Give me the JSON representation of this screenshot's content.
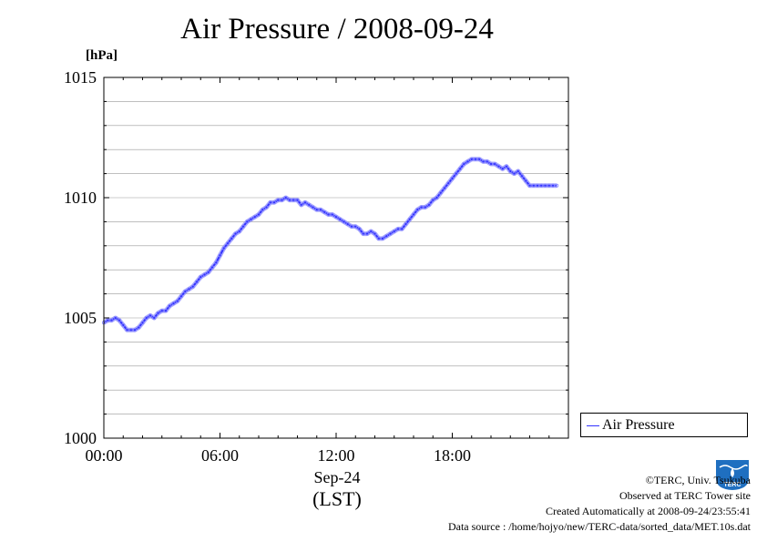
{
  "title": "Air Pressure / 2008-09-24",
  "unit_label": "[hPa]",
  "x_date_label": "Sep-24",
  "x_tz_label": "(LST)",
  "legend_label": "Air Pressure",
  "logo_text": "TERC",
  "credits": {
    "copyright": "©TERC, Univ. Tsukuba",
    "observed": "Observed at TERC Tower site",
    "created": "Created Automatically at 2008-09-24/23:55:41",
    "source": "Data source : /home/hojyo/new/TERC-data/sorted_data/MET.10s.dat"
  },
  "colors": {
    "series": "#3333ff",
    "marker": "#8888ff",
    "grid": "#999999",
    "logo": "#1f6fc0"
  },
  "chart_data": {
    "type": "line",
    "xlabel": "",
    "ylabel": "[hPa]",
    "xlim": [
      0,
      24
    ],
    "ylim": [
      1000,
      1015
    ],
    "x_ticks": [
      0,
      6,
      12,
      18
    ],
    "x_tick_labels": [
      "00:00",
      "06:00",
      "12:00",
      "18:00"
    ],
    "y_ticks": [
      1000,
      1005,
      1010,
      1015
    ],
    "y_tick_labels": [
      "1000",
      "1005",
      "1010",
      "1015"
    ],
    "y_minor_step": 1,
    "grid": true,
    "legend_position": "outside-right-bottom",
    "series": [
      {
        "name": "Air Pressure",
        "x": [
          0,
          0.2,
          0.4,
          0.6,
          0.8,
          1.0,
          1.2,
          1.4,
          1.6,
          1.8,
          2.0,
          2.2,
          2.4,
          2.6,
          2.8,
          3.0,
          3.2,
          3.4,
          3.6,
          3.8,
          4.0,
          4.2,
          4.4,
          4.6,
          4.8,
          5.0,
          5.2,
          5.4,
          5.6,
          5.8,
          6.0,
          6.2,
          6.4,
          6.6,
          6.8,
          7.0,
          7.2,
          7.4,
          7.6,
          7.8,
          8.0,
          8.2,
          8.4,
          8.6,
          8.8,
          9.0,
          9.2,
          9.4,
          9.6,
          9.8,
          10.0,
          10.2,
          10.4,
          10.6,
          10.8,
          11.0,
          11.2,
          11.4,
          11.6,
          11.8,
          12.0,
          12.2,
          12.4,
          12.6,
          12.8,
          13.0,
          13.2,
          13.4,
          13.6,
          13.8,
          14.0,
          14.2,
          14.4,
          14.6,
          14.8,
          15.0,
          15.2,
          15.4,
          15.6,
          15.8,
          16.0,
          16.2,
          16.4,
          16.6,
          16.8,
          17.0,
          17.2,
          17.4,
          17.6,
          17.8,
          18.0,
          18.2,
          18.4,
          18.6,
          18.8,
          19.0,
          19.2,
          19.4,
          19.6,
          19.8,
          20.0,
          20.2,
          20.4,
          20.6,
          20.8,
          21.0,
          21.2,
          21.4,
          21.6,
          21.8,
          22.0,
          22.2,
          22.4,
          22.6,
          22.8,
          23.0,
          23.2,
          23.4
        ],
        "values": [
          1004.8,
          1004.9,
          1004.9,
          1005.0,
          1004.9,
          1004.7,
          1004.5,
          1004.5,
          1004.5,
          1004.6,
          1004.8,
          1005.0,
          1005.1,
          1005.0,
          1005.2,
          1005.3,
          1005.3,
          1005.5,
          1005.6,
          1005.7,
          1005.9,
          1006.1,
          1006.2,
          1006.3,
          1006.5,
          1006.7,
          1006.8,
          1006.9,
          1007.1,
          1007.3,
          1007.6,
          1007.9,
          1008.1,
          1008.3,
          1008.5,
          1008.6,
          1008.8,
          1009.0,
          1009.1,
          1009.2,
          1009.3,
          1009.5,
          1009.6,
          1009.8,
          1009.8,
          1009.9,
          1009.9,
          1010.0,
          1009.9,
          1009.9,
          1009.9,
          1009.7,
          1009.8,
          1009.7,
          1009.6,
          1009.5,
          1009.5,
          1009.4,
          1009.3,
          1009.3,
          1009.2,
          1009.1,
          1009.0,
          1008.9,
          1008.8,
          1008.8,
          1008.7,
          1008.5,
          1008.5,
          1008.6,
          1008.5,
          1008.3,
          1008.3,
          1008.4,
          1008.5,
          1008.6,
          1008.7,
          1008.7,
          1008.9,
          1009.1,
          1009.3,
          1009.5,
          1009.6,
          1009.6,
          1009.7,
          1009.9,
          1010.0,
          1010.2,
          1010.4,
          1010.6,
          1010.8,
          1011.0,
          1011.2,
          1011.4,
          1011.5,
          1011.6,
          1011.6,
          1011.6,
          1011.5,
          1011.5,
          1011.4,
          1011.4,
          1011.3,
          1011.2,
          1011.3,
          1011.1,
          1011.0,
          1011.1,
          1010.9,
          1010.7,
          1010.5,
          1010.5,
          1010.5,
          1010.5,
          1010.5,
          1010.5,
          1010.5,
          1010.5
        ]
      }
    ]
  }
}
